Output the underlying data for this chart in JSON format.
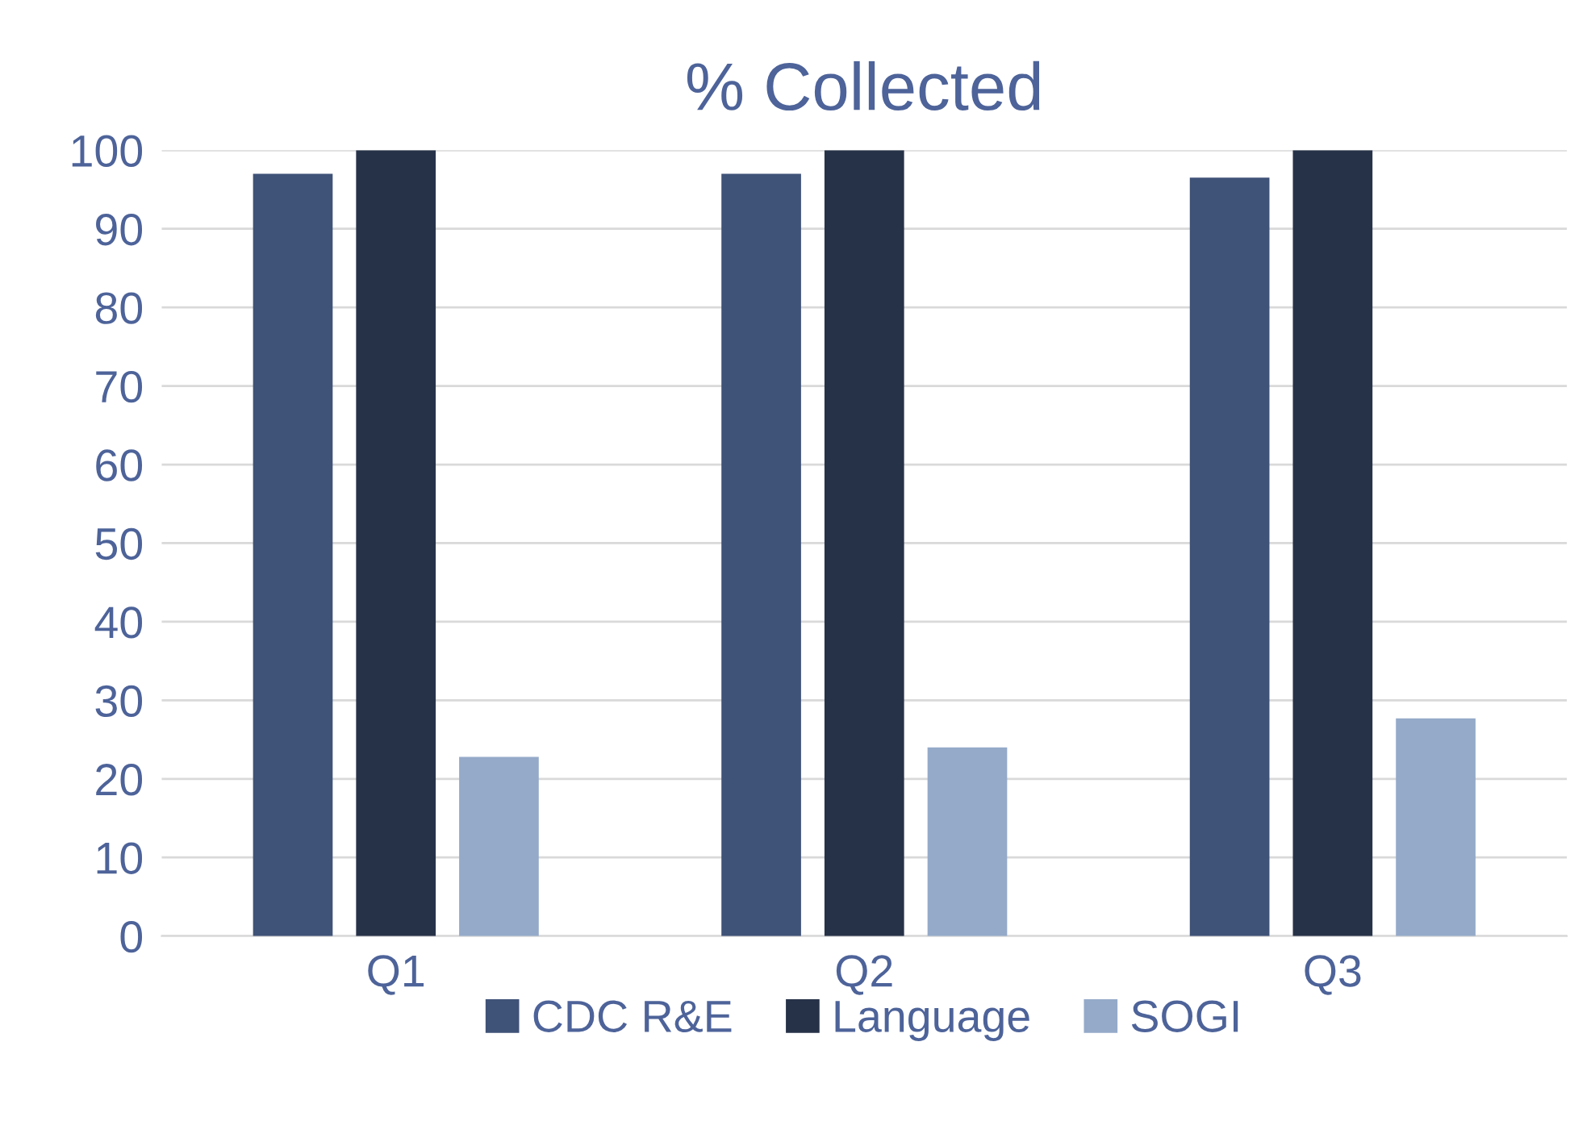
{
  "chart_data": {
    "type": "bar",
    "title": "% Collected",
    "categories": [
      "Q1",
      "Q2",
      "Q3"
    ],
    "series": [
      {
        "name": "CDC R&E",
        "color": "#3f5277",
        "values": [
          97,
          97,
          96.5
        ]
      },
      {
        "name": "Language",
        "color": "#263248",
        "values": [
          100,
          100,
          100
        ]
      },
      {
        "name": "SOGI",
        "color": "#95aac9",
        "values": [
          22.8,
          24,
          27.7
        ]
      }
    ],
    "ylim": [
      0,
      100
    ],
    "yticks": [
      0,
      10,
      20,
      30,
      40,
      50,
      60,
      70,
      80,
      90,
      100
    ],
    "grid": "y",
    "legend": "bottom"
  }
}
